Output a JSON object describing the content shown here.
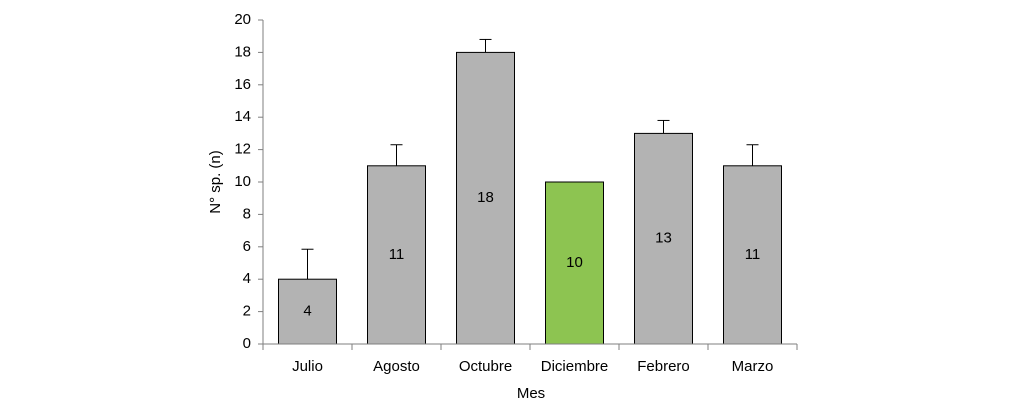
{
  "chart_data": {
    "type": "bar",
    "categories": [
      "Julio",
      "Agosto",
      "Octubre",
      "Diciembre",
      "Febrero",
      "Marzo"
    ],
    "values": [
      4,
      11,
      18,
      10,
      13,
      11
    ],
    "errors": [
      1.85,
      1.3,
      0.8,
      null,
      0.8,
      1.3
    ],
    "colors": [
      "#b3b3b3",
      "#b3b3b3",
      "#b3b3b3",
      "#8dc451",
      "#b3b3b3",
      "#b3b3b3"
    ],
    "x_label": "Mes",
    "y_label": "N° sp. (n)",
    "ylim": [
      0,
      20
    ],
    "yticks": [
      0,
      2,
      4,
      6,
      8,
      10,
      12,
      14,
      16,
      18,
      20
    ]
  }
}
